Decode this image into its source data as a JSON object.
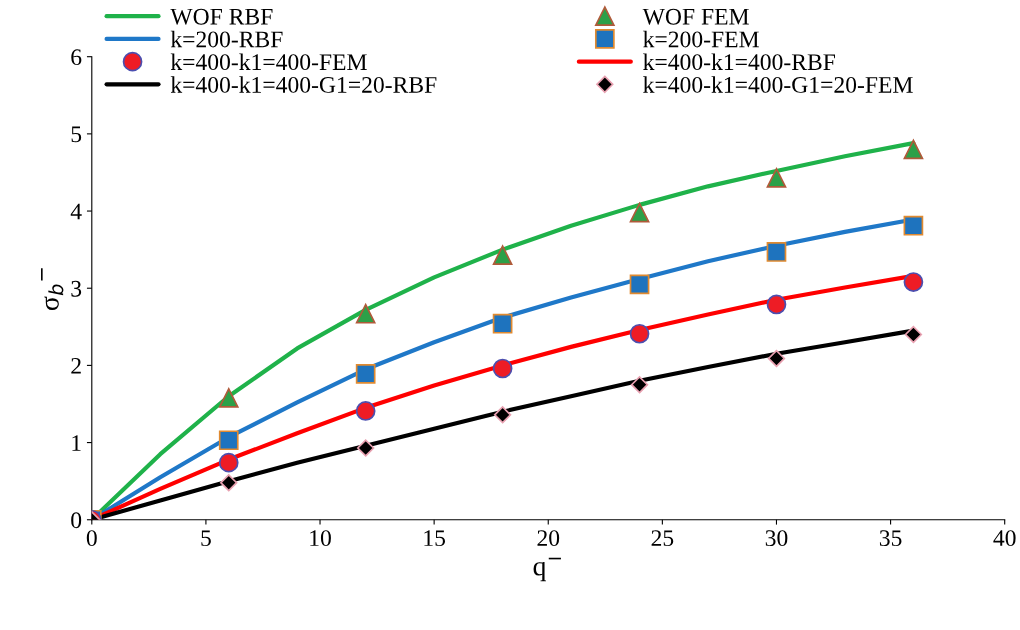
{
  "chart_data": {
    "type": "line",
    "xlabel": "q$^{−}$",
    "ylabel": "σ$_{b}$$^{−}$",
    "xlim": [
      0,
      40
    ],
    "xticks": [
      0,
      5,
      10,
      15,
      20,
      25,
      30,
      35,
      40
    ],
    "ylim": [
      0,
      6
    ],
    "yticks": [
      0,
      1,
      2,
      3,
      4,
      5,
      6
    ],
    "grid": false,
    "legend": "top",
    "series": [
      {
        "name": "WOF RBF",
        "color": "#1fb24a",
        "marker": "none",
        "x": [
          0,
          3,
          6,
          9,
          12,
          15,
          18,
          21,
          24,
          27,
          30,
          33,
          36
        ],
        "values": [
          0,
          0.85,
          1.6,
          2.22,
          2.72,
          3.14,
          3.5,
          3.81,
          4.08,
          4.32,
          4.52,
          4.71,
          4.88
        ]
      },
      {
        "name": "WOF FEM",
        "type": "scatter",
        "color": "#2ca048",
        "marker": "triangle",
        "x": [
          6,
          12,
          18,
          24,
          30,
          36
        ],
        "values": [
          1.58,
          2.67,
          3.43,
          3.98,
          4.43,
          4.8
        ]
      },
      {
        "name": "k=200-RBF",
        "color": "#1f78c8",
        "marker": "none",
        "x": [
          0,
          3,
          6,
          9,
          12,
          15,
          18,
          21,
          24,
          27,
          30,
          33,
          36
        ],
        "values": [
          0,
          0.55,
          1.07,
          1.52,
          1.95,
          2.3,
          2.62,
          2.88,
          3.12,
          3.35,
          3.55,
          3.73,
          3.89
        ]
      },
      {
        "name": "k=200-FEM",
        "type": "scatter",
        "color": "#1e73be",
        "marker": "square",
        "x": [
          0,
          6,
          12,
          18,
          24,
          30,
          36
        ],
        "values": [
          0,
          1.03,
          1.89,
          2.54,
          3.05,
          3.47,
          3.81
        ]
      },
      {
        "name": "k=400-k1=400-FEM",
        "type": "scatter",
        "color": "#ee1c25",
        "marker": "circle",
        "x": [
          0,
          6,
          12,
          18,
          24,
          30,
          36
        ],
        "values": [
          0,
          0.74,
          1.41,
          1.96,
          2.41,
          2.79,
          3.08
        ]
      },
      {
        "name": "k=400-k1=400-RBF",
        "color": "#ff0000",
        "marker": "none",
        "x": [
          0,
          3,
          6,
          9,
          12,
          15,
          18,
          21,
          24,
          27,
          30,
          33,
          36
        ],
        "values": [
          0,
          0.4,
          0.78,
          1.12,
          1.45,
          1.74,
          2.0,
          2.24,
          2.46,
          2.66,
          2.85,
          3.01,
          3.16
        ]
      },
      {
        "name": "k=400-k1=400-G1=20-RBF",
        "color": "#000000",
        "marker": "none",
        "x": [
          0,
          3,
          6,
          9,
          12,
          15,
          18,
          21,
          24,
          27,
          30,
          33,
          36
        ],
        "values": [
          0,
          0.25,
          0.5,
          0.74,
          0.96,
          1.18,
          1.4,
          1.6,
          1.8,
          1.98,
          2.15,
          2.3,
          2.45
        ]
      },
      {
        "name": "k=400-k1=400-G1=20-FEM",
        "type": "scatter",
        "color": "#000000",
        "marker": "diamond",
        "x": [
          0,
          6,
          12,
          18,
          24,
          30,
          36
        ],
        "values": [
          0,
          0.48,
          0.93,
          1.36,
          1.75,
          2.09,
          2.4
        ]
      }
    ]
  }
}
